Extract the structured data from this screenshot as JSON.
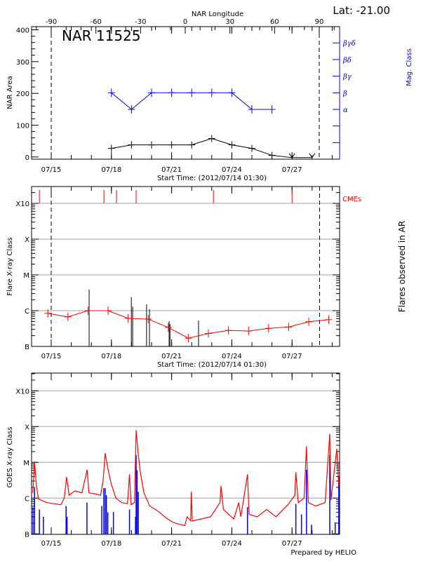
{
  "colors": {
    "nar_area": "#000000",
    "mag_class": "#0000ff",
    "flare_avg": "#ff0000",
    "cme": "#ff0000",
    "goes_long": "#ff0000",
    "goes_short": "#0000ff",
    "grid": "#a0a0a0"
  },
  "chart_data": [
    {
      "type": "line",
      "title": "NAR 11525",
      "corner_label": "Lat: -21.00",
      "xlabel": "Start Time: (2012/07/14 01:30)",
      "top_axis_label": "NAR Longitude",
      "top_axis_ticks": [
        "-90",
        "-60",
        "-30",
        "0",
        "30",
        "60",
        "90"
      ],
      "top_axis_values": [
        -90,
        -60,
        -30,
        0,
        30,
        60,
        90
      ],
      "limb_longitudes": [
        -90,
        90
      ],
      "ylabel": "NAR Area",
      "ylim": [
        -7,
        410
      ],
      "yticks": [
        "0",
        "100",
        "200",
        "300",
        "400"
      ],
      "y2label": "Mag. Class",
      "y2ticks": [
        "α",
        "β",
        "βγ",
        "βδ",
        "βγδ"
      ],
      "xticks": [
        "07/15",
        "07/18",
        "07/21",
        "07/24",
        "07/27"
      ],
      "xtick_dates": [
        "2012/07/15 00:00",
        "2012/07/18 00:00",
        "2012/07/21 00:00",
        "2012/07/24 00:00",
        "2012/07/27 00:00"
      ],
      "xlim": [
        "2012/07/14 00:00",
        "2012/07/29 09:00"
      ],
      "series": [
        {
          "key": "area",
          "x": [
            "2012/07/18 00:00",
            "2012/07/19 00:00",
            "2012/07/20 00:00",
            "2012/07/21 00:00",
            "2012/07/22 00:00",
            "2012/07/23 00:00",
            "2012/07/24 00:00",
            "2012/07/25 00:00",
            "2012/07/26 00:00",
            "2012/07/27 00:00",
            "2012/07/28 00:00"
          ],
          "values": [
            27,
            38,
            38,
            38,
            38,
            58,
            38,
            27,
            5,
            -2,
            -2
          ]
        },
        {
          "key": "mag_class",
          "x": [
            "2012/07/18 00:00",
            "2012/07/19 00:00",
            "2012/07/20 00:00",
            "2012/07/21 00:00",
            "2012/07/22 00:00",
            "2012/07/23 00:00",
            "2012/07/24 00:00",
            "2012/07/25 00:00",
            "2012/07/26 00:00"
          ],
          "values": [
            "β",
            "α",
            "β",
            "β",
            "β",
            "β",
            "β",
            "α",
            "α"
          ]
        }
      ]
    },
    {
      "type": "line",
      "xlabel": "Start Time: (2012/07/14 01:30)",
      "ylabel": "Flare X-ray Class",
      "y2label": "Flares observed in AR",
      "yscale": "log",
      "ylim_flux": [
        1e-07,
        0.003
      ],
      "yticks": [
        "B",
        "C",
        "M",
        "X",
        "X10"
      ],
      "ytick_flux": [
        1e-07,
        1e-06,
        1e-05,
        0.0001,
        0.001
      ],
      "grid": true,
      "xticks": [
        "07/15",
        "07/18",
        "07/21",
        "07/24",
        "07/27"
      ],
      "cme_label": "CMEs",
      "cmes": [
        "2012/07/14 09:50",
        "2012/07/17 15:00",
        "2012/07/18 06:00",
        "2012/07/19 05:30",
        "2012/07/23 02:00",
        "2012/07/27 00:00"
      ],
      "flare_average": {
        "x": [
          "2012/07/14 20:00",
          "2012/07/15 20:00",
          "2012/07/16 20:00",
          "2012/07/17 20:00",
          "2012/07/18 20:00",
          "2012/07/19 20:00",
          "2012/07/20 20:00",
          "2012/07/21 20:00",
          "2012/07/22 20:00",
          "2012/07/23 20:00",
          "2012/07/24 20:00",
          "2012/07/25 20:00",
          "2012/07/26 20:00",
          "2012/07/27 20:00",
          "2012/07/28 20:00"
        ],
        "flux": [
          8.4e-07,
          6.7e-07,
          1e-06,
          1e-06,
          6.1e-07,
          5.8e-07,
          3.4e-07,
          1.7e-07,
          2.3e-07,
          2.8e-07,
          2.7e-07,
          3.2e-07,
          3.5e-07,
          4.9e-07,
          5.6e-07
        ]
      },
      "flares": {
        "x": [
          "2012/07/16 21:20",
          "2012/07/18 23:50",
          "2012/07/19 01:25",
          "2012/07/19 18:00",
          "2012/07/19 21:30",
          "2012/07/20 21:00",
          "2012/07/20 22:00",
          "2012/07/22 08:10"
        ],
        "flux": [
          3.9e-06,
          2.4e-06,
          1.3e-06,
          1.5e-06,
          1.1e-06,
          5.1e-07,
          4.2e-07,
          5.3e-07
        ]
      },
      "limb_dates": [
        "2012/07/15 00:00",
        "2012/07/28 09:00"
      ]
    },
    {
      "type": "line",
      "ylabel": "GOES X-ray Class",
      "yscale": "log",
      "yticks": [
        "B",
        "C",
        "M",
        "X",
        "X10"
      ],
      "ytick_flux": [
        1e-07,
        1e-06,
        1e-05,
        0.0001,
        0.001
      ],
      "grid": true,
      "xticks": [
        "07/15",
        "07/18",
        "07/21",
        "07/24",
        "07/27"
      ],
      "footer": "Prepared by HELIO",
      "series": [
        {
          "key": "long",
          "x": [
            0.08,
            0.17,
            0.26,
            0.37,
            0.78,
            1.13,
            1.48,
            1.65,
            1.77,
            1.89,
            2.18,
            2.53,
            2.79,
            2.88,
            3.23,
            3.46,
            3.58,
            3.69,
            3.81,
            3.99,
            4.22,
            4.51,
            4.8,
            4.9,
            4.98,
            5.15,
            5.23,
            5.33,
            5.44,
            5.62,
            5.91,
            6.38,
            6.72,
            7.07,
            7.31,
            7.66,
            7.77,
            7.95,
            7.98,
            8.03,
            8.47,
            8.94,
            9.41,
            9.46,
            9.58,
            10.1,
            10.34,
            10.45,
            10.78,
            10.86,
            11.27,
            11.74,
            12.2,
            12.79,
            13.14,
            13.19,
            13.31,
            13.6,
            13.72,
            13.81,
            14.18,
            14.65,
            14.88,
            14.94,
            15.23,
            15.33
          ],
          "x_unit": "days after 2012/07/14 00:00",
          "flux": [
            1.4e-06,
            1.05e-05,
            2.2e-06,
            9.4e-07,
            7.5e-07,
            7e-07,
            6.5e-07,
            1e-06,
            3.9e-06,
            1.2e-06,
            1.6e-06,
            1.4e-06,
            6.2e-06,
            1.4e-06,
            1.3e-06,
            1.2e-06,
            2.9e-06,
            1.8e-05,
            7.2e-06,
            2.5e-06,
            1e-06,
            7.5e-07,
            7e-07,
            4.6e-06,
            6.5e-07,
            7.5e-07,
            7.9e-05,
            1.8e-05,
            5.3e-06,
            1.4e-06,
            6e-07,
            4.1e-07,
            2.8e-07,
            2.1e-07,
            1.9e-07,
            1.7e-07,
            3e-07,
            2.3e-07,
            1.5e-06,
            2.3e-07,
            2.6e-07,
            3e-07,
            7.5e-07,
            2.2e-06,
            4.8e-07,
            2.6e-07,
            7.5e-07,
            3e-07,
            4.6e-06,
            3.5e-07,
            3e-07,
            4.8e-07,
            3e-07,
            6.5e-07,
            1.2e-06,
            5.3e-06,
            7.5e-07,
            1e-06,
            2.8e-05,
            7.5e-07,
            6e-07,
            7.5e-07,
            6.3e-05,
            8.7e-07,
            2.4e-05,
            2.2e-06
          ]
        },
        {
          "key": "short",
          "x": [
            0.09,
            0.17,
            0.41,
            0.61,
            1.74,
            1.79,
            2.78,
            3.52,
            3.62,
            3.69,
            3.75,
            3.82,
            4.1,
            4.9,
            5.2,
            5.23,
            5.28,
            5.34,
            10.78,
            13.19,
            13.47,
            13.72,
            13.97,
            14.88,
            15.15,
            15.33
          ],
          "x_unit": "days after 2012/07/14 00:00",
          "flux": [
            5.6e-07,
            1.9e-06,
            4.8e-07,
            3e-07,
            6e-07,
            3e-07,
            7.5e-07,
            6e-07,
            1.9e-06,
            1.9e-06,
            1.2e-06,
            4e-07,
            4.1e-07,
            4.8e-07,
            3e-07,
            1.6e-05,
            6e-06,
            1.5e-06,
            5.6e-07,
            6.9e-07,
            3.5e-07,
            6.2e-06,
            1.8e-07,
            1.6e-05,
            2.1e-07,
            4.2e-06
          ]
        }
      ]
    }
  ]
}
